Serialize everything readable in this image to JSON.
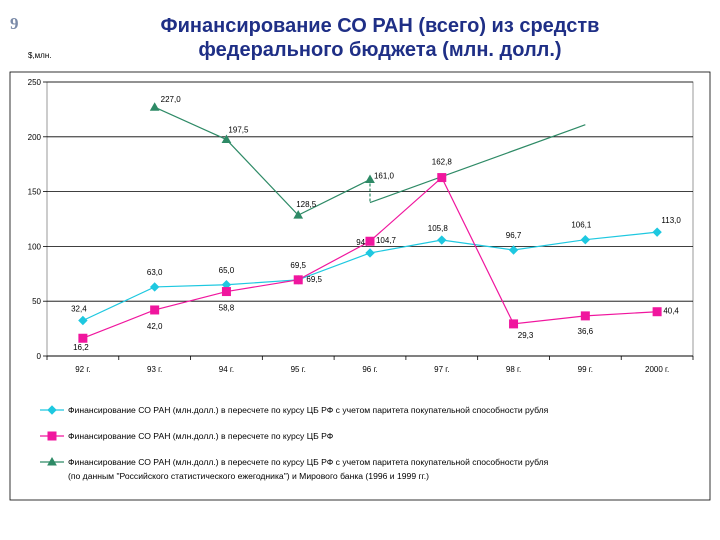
{
  "slide_number": "9",
  "title_lines": [
    "Финансирование СО РАН (всего) из средств",
    "федерального бюджета (млн. долл.)"
  ],
  "chart_data": {
    "type": "line",
    "ylabel": "$,млн.",
    "ylim": [
      0,
      250
    ],
    "yticks": [
      "0",
      "50",
      "100",
      "150",
      "200",
      "250"
    ],
    "categories": [
      "92 г.",
      "93 г.",
      "94 г.",
      "95 г.",
      "96 г.",
      "97 г.",
      "98 г.",
      "99 г.",
      "2000 г."
    ],
    "grid": "horizontal",
    "legend_position": "bottom",
    "series": [
      {
        "name": "Финансирование СО РАН  (млн.долл.) в пересчете по курсу ЦБ РФ с учетом паритета покупательной способности рубля",
        "color": "#1ec8e0",
        "marker": "diamond",
        "values": [
          32.4,
          63.0,
          65.0,
          69.5,
          94.0,
          105.8,
          96.7,
          106.1,
          113.0
        ],
        "labels": [
          "32,4",
          "63,0",
          "65,0",
          "69,5",
          "94,0",
          "105,8",
          "96,7",
          "106,1",
          "113,0"
        ]
      },
      {
        "name": "Финансирование СО РАН (млн.долл.) в пересчете по курсу ЦБ РФ",
        "color": "#f0169e",
        "marker": "square",
        "values": [
          16.2,
          42.0,
          58.8,
          69.5,
          104.7,
          162.8,
          29.3,
          36.6,
          40.4
        ],
        "labels": [
          "16,2",
          "42,0",
          "58,8",
          "69,5",
          "104,7",
          "162,8",
          "29,3",
          "36,6",
          "40,4"
        ]
      },
      {
        "name_lines": [
          "Финансирование СО РАН (млн.долл.) в пересчете по курсу ЦБ РФ с учетом паритета покупательной способности рубля",
          "(по данным \"Российского статистического ежегодника\") и Мирового банка (1996 и 1999 гг.)"
        ],
        "color": "#2e8a66",
        "marker": "triangle",
        "values": [
          null,
          227.0,
          197.5,
          128.5,
          161.0,
          null,
          null,
          null,
          null
        ],
        "labels": [
          null,
          "227,0",
          "197,5",
          "128,5",
          "161,0",
          null,
          null,
          null,
          null
        ],
        "extension": {
          "from_value": 140,
          "to_category_index": 7,
          "to_value": 211
        }
      }
    ]
  }
}
